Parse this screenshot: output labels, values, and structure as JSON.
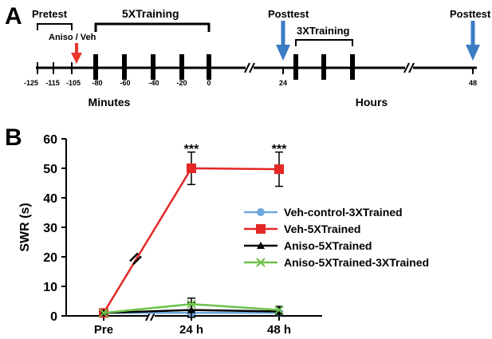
{
  "panel_a": {
    "label": "A",
    "pretest_label": "Pretest",
    "training5_label": "5XTraining",
    "aniso_label": "Aniso / Veh",
    "posttest1_label": "Posttest",
    "posttest2_label": "Posttest",
    "training3_label": "3XTraining",
    "minutes_label": "Minutes",
    "hours_label": "Hours",
    "ticks": [
      "-125",
      "-115",
      "-105",
      "-80",
      "-60",
      "-40",
      "-20",
      "0",
      "24",
      "48"
    ],
    "arrow_colors": {
      "aniso": "#e8372c",
      "posttest": "#3a7cc4"
    }
  },
  "panel_b": {
    "label": "B"
  },
  "chart_data": {
    "type": "line",
    "categories": [
      "Pre",
      "24 h",
      "48 h"
    ],
    "ylabel": "SWR (s)",
    "xlabel": "",
    "ylim": [
      0,
      60
    ],
    "yticks": [
      "0",
      "10",
      "20",
      "30",
      "40",
      "50",
      "60"
    ],
    "annotations": [
      {
        "category": "24 h",
        "text": "***"
      },
      {
        "category": "48 h",
        "text": "***"
      }
    ],
    "legend_position": "right",
    "series": [
      {
        "name": "Veh-control-3XTrained",
        "color": "#6fa8dc",
        "marker": "circle",
        "values": [
          1,
          1,
          1
        ],
        "errors": [
          0,
          0.5,
          0.5
        ]
      },
      {
        "name": "Veh-5XTrained",
        "color": "#e32726",
        "marker": "square",
        "values": [
          1,
          50,
          49.7
        ],
        "errors": [
          0,
          5.5,
          5.8
        ]
      },
      {
        "name": "Aniso-5XTrained",
        "color": "#000000",
        "marker": "triangle",
        "values": [
          1,
          2,
          1.5
        ],
        "errors": [
          0,
          2.5,
          1.5
        ]
      },
      {
        "name": "Aniso-5XTrained-3XTrained",
        "color": "#6cc24a",
        "marker": "cross",
        "values": [
          1,
          4,
          2
        ],
        "errors": [
          0,
          2.0,
          1.2
        ]
      }
    ]
  }
}
